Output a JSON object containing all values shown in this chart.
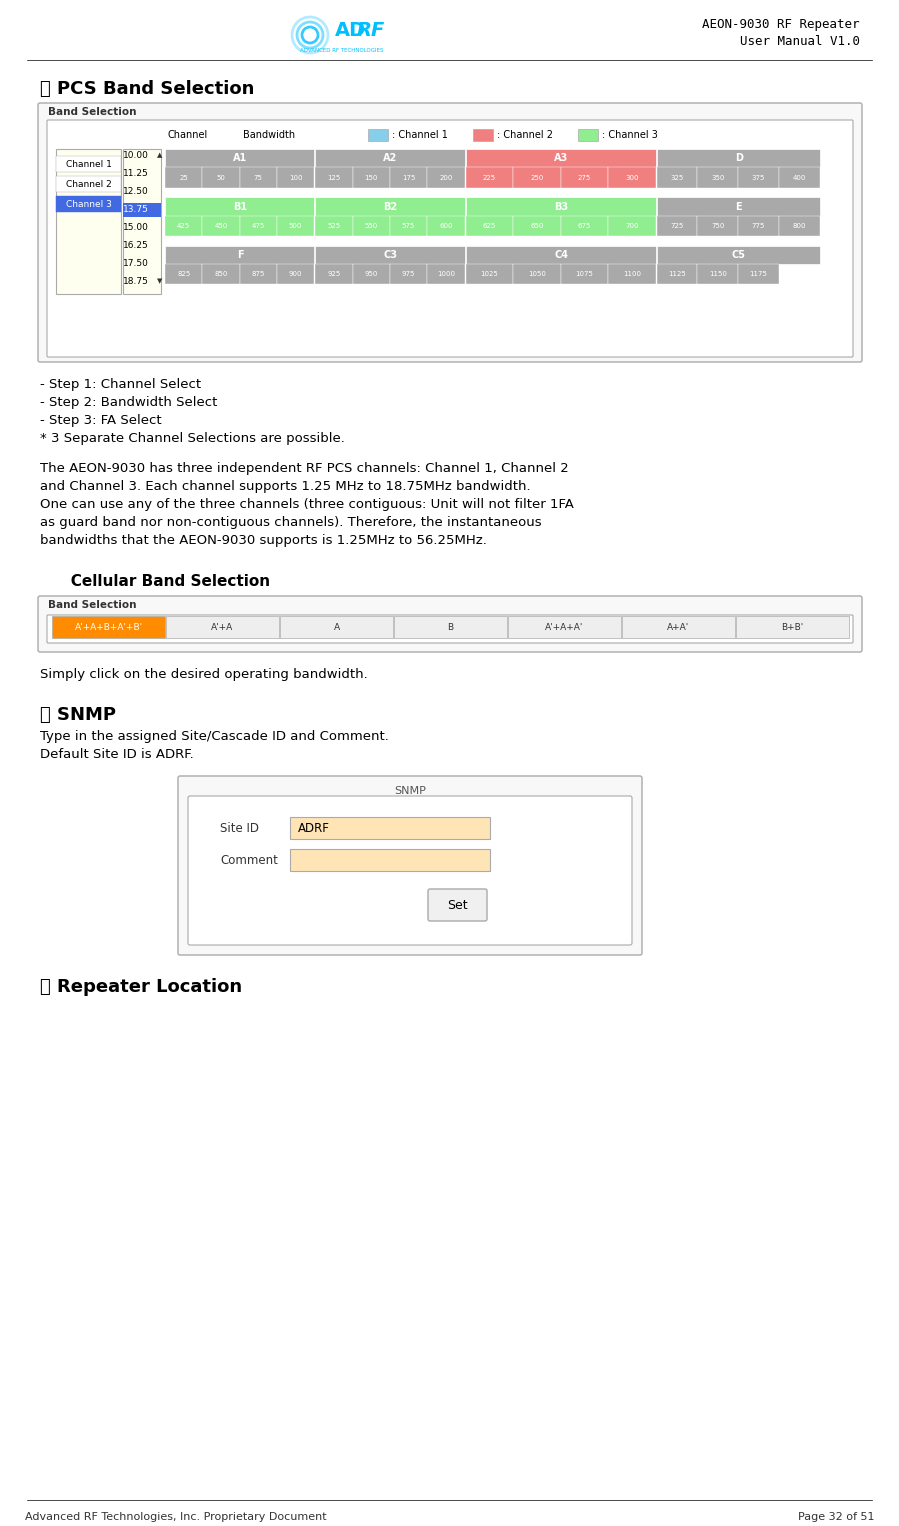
{
  "page_title_line1": "AEON-9030 RF Repeater",
  "page_title_line2": "User Manual V1.0",
  "footer_left": "Advanced RF Technologies, Inc. Proprietary Document",
  "footer_right": "Page 32 of 51",
  "section_a_title": "Ⓐ PCS Band Selection",
  "band_selection_label": "Band Selection",
  "channel_col": "Channel",
  "bandwidth_col": "Bandwidth",
  "channel_list": [
    "Channel 1",
    "Channel 2",
    "Channel 3"
  ],
  "bandwidth_list": [
    "10.00",
    "11.25",
    "12.50",
    "13.75",
    "15.00",
    "16.25",
    "17.50",
    "18.75"
  ],
  "ch1_color": "#87CEEB",
  "ch2_color": "#F08080",
  "ch3_color": "#90EE90",
  "ch3_bw_selected_color": "#4169E1",
  "legend_ch1": ": Channel 1",
  "legend_ch2": ": Channel 2",
  "legend_ch3": ": Channel 3",
  "row1_labels": [
    "A1",
    "A2",
    "A3",
    "D"
  ],
  "row1_numbers": [
    "25",
    "50",
    "75",
    "100",
    "125",
    "150",
    "175",
    "200",
    "225",
    "250",
    "275",
    "300",
    "325",
    "350",
    "375",
    "400"
  ],
  "row2_labels": [
    "B1",
    "B2",
    "B3",
    "E"
  ],
  "row2_numbers": [
    "425",
    "450",
    "475",
    "500",
    "525",
    "550",
    "575",
    "600",
    "625",
    "650",
    "675",
    "700",
    "725",
    "750",
    "775",
    "800"
  ],
  "row3_labels": [
    "F",
    "C3",
    "C4",
    "C5"
  ],
  "row3_numbers": [
    "825",
    "850",
    "875",
    "900",
    "925",
    "950",
    "975",
    "1000",
    "1025",
    "1050",
    "1075",
    "1100",
    "1125",
    "1150",
    "1175"
  ],
  "steps_text": "- Step 1: Channel Select\n- Step 2: Bandwidth Select\n- Step 3: FA Select\n* 3 Separate Channel Selections are possible.",
  "para1": "The AEON-9030 has three independent RF PCS channels: Channel 1, Channel 2\nand Channel 3. Each channel supports 1.25 MHz to 18.75MHz bandwidth.\nOne can use any of the three channels (three contiguous: Unit will not filter 1FA\nas guard band nor non-contiguous channels). Therefore, the instantaneous\nbandwidths that the AEON-9030 supports is 1.25MHz to 56.25MHz.",
  "cellular_title": "   Cellular Band Selection",
  "cellular_band_label": "Band Selection",
  "cellular_buttons": [
    "A'+A+B+A'+B'",
    "A'+A",
    "A",
    "B",
    "A'+A+A'",
    "A+A'",
    "B+B'"
  ],
  "cellular_btn_color": "#FF8C00",
  "simply_text": "Simply click on the desired operating bandwidth.",
  "section_b_title": "Ⓑ SNMP",
  "snmp_text": "Type in the assigned Site/Cascade ID and Comment.\nDefault Site ID is ADRF.",
  "snmp_label": "SNMP",
  "site_id_label": "Site ID",
  "site_id_value": "ADRF",
  "comment_label": "Comment",
  "set_btn": "Set",
  "section_c_title": "Ⓒ Repeater Location",
  "bg_color": "#FFFFFF",
  "text_color": "#000000",
  "panel_bg": "#F5F5DC",
  "panel_border": "#CCCCCC",
  "grid_gray": "#A9A9A9"
}
